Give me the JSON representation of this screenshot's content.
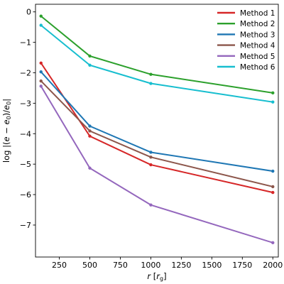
{
  "chart_data": {
    "type": "line",
    "title": "",
    "xlabel": "r [r_g]",
    "ylabel": "log |(e − e0)/e0|",
    "xlim": [
      55,
      2045
    ],
    "ylim": [
      -8.05,
      0.25
    ],
    "xticks": [
      250,
      500,
      750,
      1000,
      1250,
      1500,
      1750,
      2000
    ],
    "yticks": [
      0,
      -1,
      -2,
      -3,
      -4,
      -5,
      -6,
      -7
    ],
    "x": [
      100,
      500,
      1000,
      2000
    ],
    "grid": false,
    "legend_position": "top-right",
    "series": [
      {
        "name": "Method 1",
        "color": "#d62728",
        "values": [
          -1.68,
          -4.08,
          -5.02,
          -5.93
        ]
      },
      {
        "name": "Method 2",
        "color": "#2ca02c",
        "values": [
          -0.14,
          -1.45,
          -2.05,
          -2.66
        ]
      },
      {
        "name": "Method 3",
        "color": "#1f77b4",
        "values": [
          -1.97,
          -3.75,
          -4.61,
          -5.23
        ]
      },
      {
        "name": "Method 4",
        "color": "#8c564b",
        "values": [
          -2.27,
          -3.91,
          -4.77,
          -5.74
        ]
      },
      {
        "name": "Method 5",
        "color": "#9467bd",
        "values": [
          -2.44,
          -5.13,
          -6.34,
          -7.58
        ]
      },
      {
        "name": "Method 6",
        "color": "#17becf",
        "values": [
          -0.44,
          -1.75,
          -2.35,
          -2.96
        ]
      }
    ]
  }
}
